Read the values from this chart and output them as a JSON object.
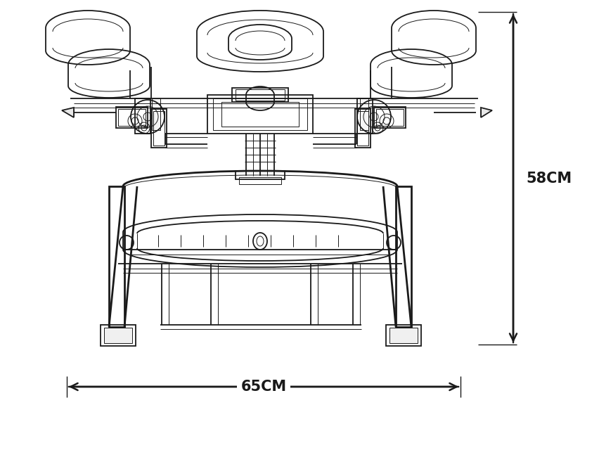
{
  "bg_color": "#ffffff",
  "line_color": "#1a1a1a",
  "dim_color": "#1a1a1a",
  "label_58cm": "58CM",
  "label_65cm": "65CM",
  "label_fontsize": 15,
  "fig_width": 8.52,
  "fig_height": 6.4,
  "dpi": 100,
  "arrow_lw": 1.5,
  "lw": 1.3,
  "lw_thin": 0.7,
  "lw_thick": 2.0
}
